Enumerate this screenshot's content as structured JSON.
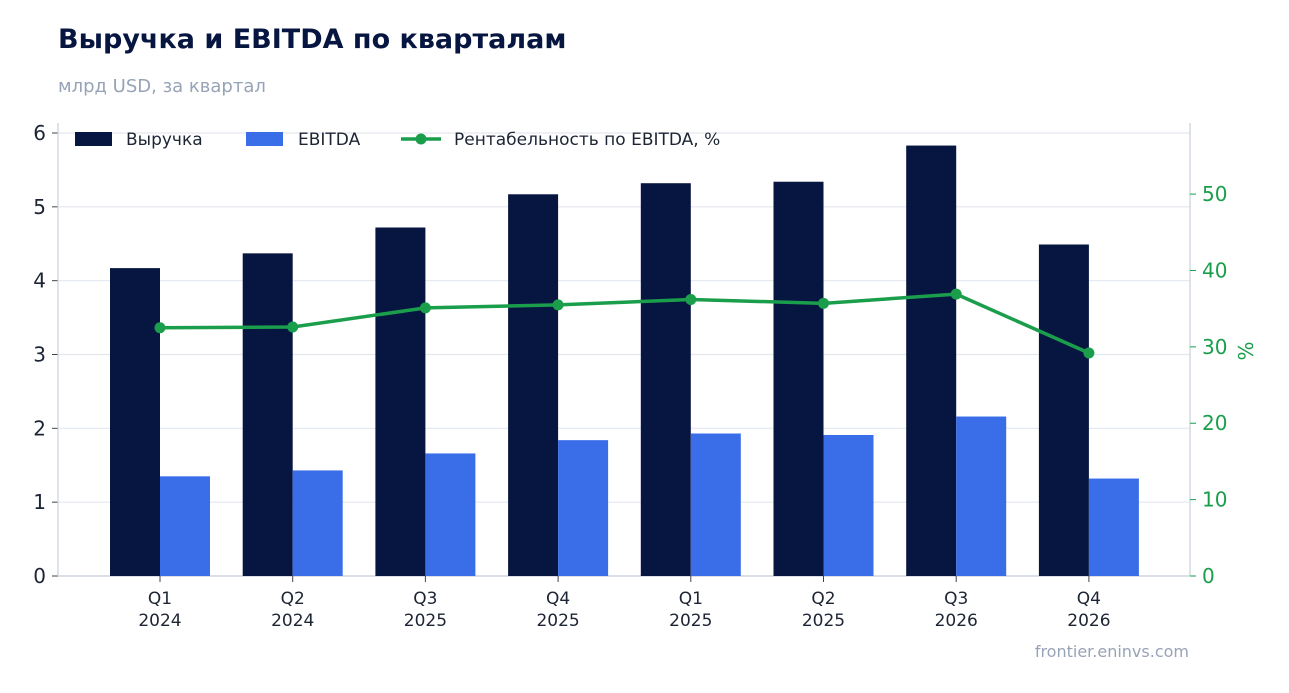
{
  "title": "Выручка и EBITDA по кварталам",
  "subtitle": "млрд USD, за квартал",
  "source": "frontier.eninvs.com",
  "colors": {
    "revenue": "#061640",
    "ebitda": "#3a6de8",
    "margin": "#1a9e4b",
    "grid": "#e3e8ef",
    "axis": "#c9d0da"
  },
  "chart_data": {
    "type": "bar",
    "categories": [
      [
        "Q1",
        "2024"
      ],
      [
        "Q2",
        "2024"
      ],
      [
        "Q3",
        "2025"
      ],
      [
        "Q4",
        "2025"
      ],
      [
        "Q1",
        "2025"
      ],
      [
        "Q2",
        "2025"
      ],
      [
        "Q3",
        "2026"
      ],
      [
        "Q4",
        "2026"
      ]
    ],
    "series": [
      {
        "name": "Выручка",
        "type": "bar",
        "axis": "left",
        "values": [
          4.17,
          4.37,
          4.72,
          5.17,
          5.32,
          5.34,
          5.83,
          4.49
        ]
      },
      {
        "name": "EBITDA",
        "type": "bar",
        "axis": "left",
        "values": [
          1.35,
          1.43,
          1.66,
          1.84,
          1.93,
          1.91,
          2.16,
          1.32
        ]
      },
      {
        "name": "Рентабельность по EBITDA, %",
        "type": "line",
        "axis": "right",
        "values": [
          32.5,
          32.6,
          35.1,
          35.5,
          36.2,
          35.7,
          36.9,
          29.2
        ]
      }
    ],
    "ylim": [
      0,
      6
    ],
    "yticks": [
      0,
      1,
      2,
      3,
      4,
      5,
      6
    ],
    "y2lim": [
      0,
      58
    ],
    "y2ticks": [
      0,
      10,
      20,
      30,
      40,
      50
    ],
    "y2label": "%",
    "grid": true,
    "legend": "top-left"
  }
}
